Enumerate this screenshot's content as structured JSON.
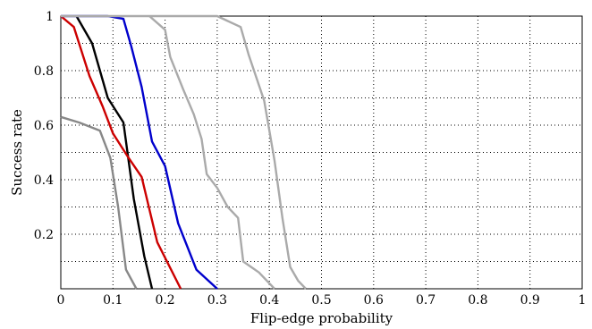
{
  "chart_data": {
    "type": "line",
    "title": "",
    "xlabel": "Flip-edge probability",
    "ylabel": "Success rate",
    "xlim": [
      0,
      1
    ],
    "ylim": [
      0,
      1
    ],
    "grid": true,
    "legend": "none",
    "x_ticks": [
      0,
      0.1,
      0.2,
      0.3,
      0.4,
      0.5,
      0.6,
      0.7,
      0.8,
      0.9,
      1
    ],
    "x_tick_labels": [
      "0",
      "0.1",
      "0.2",
      "0.3",
      "0.4",
      "0.5",
      "0.6",
      "0.7",
      "0.8",
      "0.9",
      "1"
    ],
    "y_ticks": [
      0,
      0.2,
      0.4,
      0.6,
      0.8,
      1
    ],
    "y_tick_labels": [
      "",
      "0.2",
      "0.4",
      "0.6",
      "0.8",
      "1"
    ],
    "series": [
      {
        "color": "#888888",
        "x": [
          0,
          0.035,
          0.075,
          0.095,
          0.11,
          0.125,
          0.145
        ],
        "y": [
          0.63,
          0.61,
          0.58,
          0.48,
          0.3,
          0.07,
          0
        ]
      },
      {
        "color": "#000000",
        "x": [
          0.03,
          0.06,
          0.09,
          0.12,
          0.14,
          0.16,
          0.175
        ],
        "y": [
          1,
          0.9,
          0.7,
          0.61,
          0.33,
          0.12,
          0
        ]
      },
      {
        "color": "#cc0000",
        "x": [
          0,
          0.025,
          0.055,
          0.08,
          0.1,
          0.13,
          0.155,
          0.185,
          0.23
        ],
        "y": [
          1,
          0.96,
          0.78,
          0.67,
          0.57,
          0.48,
          0.41,
          0.17,
          0
        ]
      },
      {
        "color": "#0000cc",
        "x": [
          0,
          0.09,
          0.12,
          0.135,
          0.155,
          0.175,
          0.2,
          0.225,
          0.26,
          0.3
        ],
        "y": [
          1,
          1,
          0.99,
          0.89,
          0.74,
          0.54,
          0.45,
          0.24,
          0.07,
          0
        ]
      },
      {
        "color": "#aaaaaa",
        "x": [
          0.17,
          0.2,
          0.21,
          0.235,
          0.255,
          0.27,
          0.28,
          0.3,
          0.32,
          0.34,
          0.35,
          0.365,
          0.38,
          0.41
        ],
        "y": [
          1,
          0.95,
          0.85,
          0.73,
          0.64,
          0.55,
          0.42,
          0.37,
          0.3,
          0.26,
          0.1,
          0.08,
          0.06,
          0
        ]
      },
      {
        "color": "#aaaaaa",
        "x": [
          0,
          0.3,
          0.345,
          0.36,
          0.39,
          0.4,
          0.41,
          0.425,
          0.44,
          0.455,
          0.47
        ],
        "y": [
          1,
          1,
          0.96,
          0.86,
          0.69,
          0.58,
          0.47,
          0.26,
          0.08,
          0.03,
          0
        ]
      }
    ]
  }
}
